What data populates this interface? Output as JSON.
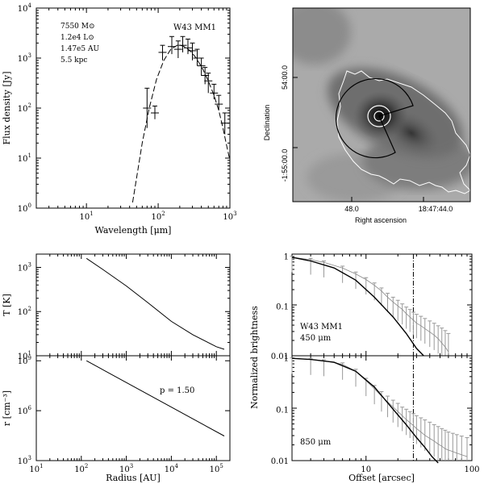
{
  "chart_data": [
    {
      "id": "sed",
      "type": "line",
      "title": "W43 MM1",
      "annotations": [
        "7550 M⊙",
        "1.2e4 L⊙",
        "1.47e5 AU",
        "5.5 kpc"
      ],
      "xlabel": "Wavelength [μm]",
      "ylabel": "Flux density [Jy]",
      "xscale": "log",
      "yscale": "log",
      "xlim": [
        2,
        1000
      ],
      "ylim": [
        1,
        10000
      ],
      "xticks": [
        {
          "v": 10,
          "label": "10"
        },
        {
          "v": 100,
          "label": "10"
        },
        {
          "v": 1000,
          "label": "10"
        }
      ],
      "xtick_exp": [
        "1",
        "2",
        "3"
      ],
      "yticks": [
        {
          "v": 1,
          "e": "0"
        },
        {
          "v": 10,
          "e": "1"
        },
        {
          "v": 100,
          "e": "2"
        },
        {
          "v": 1000,
          "e": "3"
        },
        {
          "v": 10000,
          "e": "4"
        }
      ],
      "model": {
        "x": [
          44,
          50,
          60,
          75,
          95,
          120,
          150,
          190,
          230,
          280,
          340,
          420,
          500,
          600,
          700,
          800,
          900,
          1000
        ],
        "y": [
          1.3,
          4,
          20,
          100,
          380,
          900,
          1500,
          1850,
          1700,
          1400,
          1000,
          600,
          350,
          180,
          90,
          40,
          18,
          9
        ]
      },
      "points": [
        {
          "x": 70,
          "y": 100,
          "lo": 40,
          "hi": 250
        },
        {
          "x": 90,
          "y": 80,
          "lo": 60,
          "hi": 110
        },
        {
          "x": 115,
          "y": 1300,
          "lo": 900,
          "hi": 1800
        },
        {
          "x": 155,
          "y": 1700,
          "lo": 1200,
          "hi": 2700
        },
        {
          "x": 190,
          "y": 1500,
          "lo": 1000,
          "hi": 2200
        },
        {
          "x": 220,
          "y": 1800,
          "lo": 1300,
          "hi": 2700
        },
        {
          "x": 260,
          "y": 1600,
          "lo": 1200,
          "hi": 2400
        },
        {
          "x": 300,
          "y": 1400,
          "lo": 900,
          "hi": 2000
        },
        {
          "x": 350,
          "y": 1000,
          "lo": 700,
          "hi": 1500
        },
        {
          "x": 400,
          "y": 700,
          "lo": 450,
          "hi": 1000
        },
        {
          "x": 450,
          "y": 450,
          "lo": 300,
          "hi": 650
        },
        {
          "x": 500,
          "y": 350,
          "lo": 200,
          "hi": 500
        },
        {
          "x": 600,
          "y": 200,
          "lo": 150,
          "hi": 300
        },
        {
          "x": 700,
          "y": 120,
          "lo": 90,
          "hi": 180
        },
        {
          "x": 850,
          "y": 50,
          "lo": 30,
          "hi": 80
        }
      ]
    },
    {
      "id": "map",
      "type": "heatmap",
      "xlabel": "Right ascension",
      "ylabel": "Declination",
      "xticks": [
        "48.0",
        "18:47:44.0"
      ],
      "yticks": [
        "54:00.0",
        "-1:55:00.0"
      ]
    },
    {
      "id": "temperature",
      "type": "line",
      "ylabel": "T [K]",
      "xscale": "log",
      "yscale": "log",
      "xlim": [
        10,
        200000
      ],
      "ylim": [
        10,
        2000
      ],
      "yticks": [
        {
          "v": 10,
          "e": "1"
        },
        {
          "v": 100,
          "e": "2"
        },
        {
          "v": 1000,
          "e": "3"
        }
      ],
      "line": {
        "x": [
          130,
          300,
          1000,
          3000,
          10000,
          30000,
          100000,
          150000
        ],
        "y": [
          1600,
          900,
          380,
          160,
          60,
          30,
          16,
          14
        ]
      }
    },
    {
      "id": "density",
      "type": "line",
      "ylabel": "r [cm⁻³]",
      "xlabel": "Radius [AU]",
      "annotation": "p = 1.50",
      "xscale": "log",
      "yscale": "log",
      "xlim": [
        10,
        200000
      ],
      "ylim": [
        1000,
        2000000000
      ],
      "xticks": [
        {
          "v": 10,
          "e": "1"
        },
        {
          "v": 100,
          "e": "2"
        },
        {
          "v": 1000,
          "e": "3"
        },
        {
          "v": 10000,
          "e": "4"
        },
        {
          "v": 100000,
          "e": "5"
        }
      ],
      "yticks": [
        {
          "v": 1000,
          "e": "3"
        },
        {
          "v": 1000000,
          "e": "6"
        },
        {
          "v": 1000000000,
          "e": "9"
        }
      ],
      "line": {
        "x": [
          130,
          150000
        ],
        "y": [
          1000000000,
          30000
        ]
      }
    },
    {
      "id": "profile450",
      "type": "line",
      "ylabel": "Normalized brightness",
      "annotations": [
        "W43 MM1",
        "450 μm"
      ],
      "xscale": "log",
      "yscale": "log",
      "xlim": [
        2,
        100
      ],
      "ylim": [
        0.01,
        1.1
      ],
      "yticks": [
        {
          "v": 1,
          "label": "1"
        },
        {
          "v": 0.1,
          "label": "0.1"
        },
        {
          "v": 0.01,
          "label": "0.01"
        }
      ],
      "vline": 28,
      "model": {
        "x": [
          2,
          3,
          5,
          8,
          12,
          18,
          24,
          30,
          35
        ],
        "y": [
          0.95,
          0.8,
          0.58,
          0.33,
          0.15,
          0.06,
          0.028,
          0.014,
          0.01
        ]
      },
      "obs": {
        "x": [
          2,
          3,
          4,
          6,
          8,
          10,
          12,
          14,
          16,
          18,
          20,
          22,
          24,
          26,
          28,
          30,
          33,
          36,
          40,
          44,
          48,
          52,
          56,
          60
        ],
        "y": [
          0.95,
          0.85,
          0.75,
          0.58,
          0.44,
          0.34,
          0.26,
          0.2,
          0.15,
          0.12,
          0.1,
          0.085,
          0.07,
          0.06,
          0.052,
          0.045,
          0.04,
          0.035,
          0.03,
          0.026,
          0.022,
          0.018,
          0.015,
          0.012
        ],
        "hi": [
          1.0,
          0.9,
          0.8,
          0.63,
          0.48,
          0.37,
          0.29,
          0.23,
          0.18,
          0.15,
          0.13,
          0.11,
          0.095,
          0.085,
          0.075,
          0.068,
          0.062,
          0.056,
          0.05,
          0.045,
          0.04,
          0.036,
          0.032,
          0.028
        ]
      }
    },
    {
      "id": "profile850",
      "type": "line",
      "annotations": [
        "850 μm"
      ],
      "xlabel": "Offset [arcsec]",
      "xscale": "log",
      "yscale": "log",
      "xlim": [
        2,
        100
      ],
      "ylim": [
        0.01,
        1.1
      ],
      "xticks": [
        {
          "v": 10,
          "label": "10"
        },
        {
          "v": 100,
          "label": "100"
        }
      ],
      "yticks": [
        {
          "v": 1,
          "label": "1"
        },
        {
          "v": 0.1,
          "label": "0.1"
        },
        {
          "v": 0.01,
          "label": "0.01"
        }
      ],
      "vline": 28,
      "model": {
        "x": [
          2,
          3,
          5,
          8,
          12,
          18,
          24,
          30,
          36,
          42,
          48
        ],
        "y": [
          0.98,
          0.93,
          0.82,
          0.55,
          0.27,
          0.1,
          0.05,
          0.028,
          0.018,
          0.012,
          0.009
        ]
      },
      "obs": {
        "x": [
          2,
          3,
          4,
          6,
          8,
          10,
          12,
          14,
          16,
          18,
          20,
          22,
          24,
          26,
          28,
          30,
          33,
          36,
          40,
          44,
          48,
          52,
          56,
          60,
          66,
          72,
          80,
          90
        ],
        "y": [
          0.98,
          0.93,
          0.88,
          0.75,
          0.55,
          0.36,
          0.25,
          0.18,
          0.14,
          0.11,
          0.09,
          0.075,
          0.063,
          0.055,
          0.048,
          0.042,
          0.036,
          0.031,
          0.027,
          0.024,
          0.021,
          0.019,
          0.017,
          0.016,
          0.015,
          0.014,
          0.013,
          0.012
        ],
        "hi": [
          1.0,
          0.96,
          0.92,
          0.8,
          0.6,
          0.4,
          0.29,
          0.22,
          0.18,
          0.15,
          0.13,
          0.11,
          0.1,
          0.09,
          0.082,
          0.075,
          0.068,
          0.062,
          0.056,
          0.05,
          0.046,
          0.042,
          0.039,
          0.036,
          0.034,
          0.032,
          0.03,
          0.028
        ]
      }
    }
  ]
}
